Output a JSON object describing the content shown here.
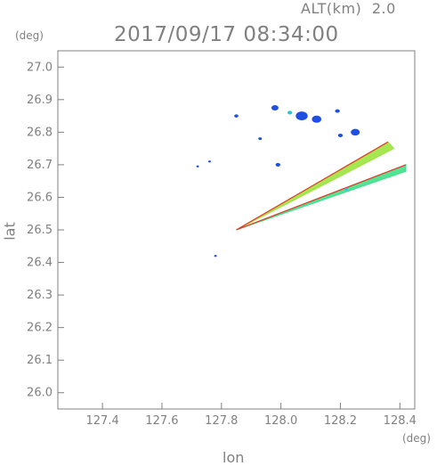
{
  "header": {
    "altitude_label": "ALT(km)",
    "altitude_value": "2.0",
    "datetime": "2017/09/17 08:34:00"
  },
  "axes": {
    "x_name": "lon",
    "y_name": "lat",
    "x_unit": "(deg)",
    "y_unit": "(deg)"
  },
  "chart_data": {
    "type": "heatmap",
    "title": "2017/09/17 08:34:00",
    "xlabel": "lon",
    "ylabel": "lat",
    "xlim": [
      127.25,
      128.45
    ],
    "ylim": [
      25.95,
      27.05
    ],
    "x_ticks": [
      127.4,
      127.6,
      127.8,
      128.0,
      128.2,
      128.4
    ],
    "x_tick_labels": [
      "127.4",
      "127.6",
      "127.8",
      "128.0",
      "128.2",
      "128.4"
    ],
    "y_ticks": [
      26.0,
      26.1,
      26.2,
      26.3,
      26.4,
      26.5,
      26.6,
      26.7,
      26.8,
      26.9,
      27.0
    ],
    "y_tick_labels": [
      "26.0",
      "26.1",
      "26.2",
      "26.3",
      "26.4",
      "26.5",
      "26.6",
      "26.7",
      "26.8",
      "26.9",
      "27.0"
    ],
    "grid": false,
    "colors": {
      "weak": "#1e4fe0",
      "mid": "#22c7d8",
      "moderate": "#7ee03a",
      "strong": "#e33a2a"
    },
    "wedges": [
      {
        "name": "upper",
        "apex": [
          127.85,
          26.5
        ],
        "edge_a": [
          128.36,
          26.77
        ],
        "edge_b": [
          128.38,
          26.75
        ],
        "color": "#9be33e",
        "edge_color": "#e33a2a"
      },
      {
        "name": "lower",
        "apex": [
          127.85,
          26.5
        ],
        "edge_a": [
          128.42,
          26.7
        ],
        "edge_b": [
          128.42,
          26.68
        ],
        "color": "#3fe08a",
        "edge_color": "#e33a2a"
      }
    ],
    "echoes": [
      {
        "lon": 127.98,
        "lat": 26.875,
        "r": 0.012,
        "color": "#1e4fe0"
      },
      {
        "lon": 128.07,
        "lat": 26.85,
        "r": 0.02,
        "color": "#1e4fe0"
      },
      {
        "lon": 128.12,
        "lat": 26.84,
        "r": 0.016,
        "color": "#1e4fe0"
      },
      {
        "lon": 128.03,
        "lat": 26.86,
        "r": 0.008,
        "color": "#22c7d8"
      },
      {
        "lon": 128.25,
        "lat": 26.8,
        "r": 0.015,
        "color": "#1e4fe0"
      },
      {
        "lon": 128.19,
        "lat": 26.865,
        "r": 0.008,
        "color": "#1e4fe0"
      },
      {
        "lon": 128.2,
        "lat": 26.79,
        "r": 0.008,
        "color": "#1e4fe0"
      },
      {
        "lon": 127.85,
        "lat": 26.85,
        "r": 0.007,
        "color": "#1e4fe0"
      },
      {
        "lon": 127.93,
        "lat": 26.78,
        "r": 0.006,
        "color": "#1e4fe0"
      },
      {
        "lon": 127.99,
        "lat": 26.7,
        "r": 0.008,
        "color": "#1e4fe0"
      },
      {
        "lon": 127.72,
        "lat": 26.695,
        "r": 0.004,
        "color": "#1e4fe0"
      },
      {
        "lon": 127.76,
        "lat": 26.71,
        "r": 0.004,
        "color": "#1e4fe0"
      },
      {
        "lon": 127.78,
        "lat": 26.42,
        "r": 0.004,
        "color": "#1e4fe0"
      },
      {
        "lon": 128.22,
        "lat": 26.625,
        "r": 0.006,
        "color": "#22c7d8"
      }
    ]
  }
}
